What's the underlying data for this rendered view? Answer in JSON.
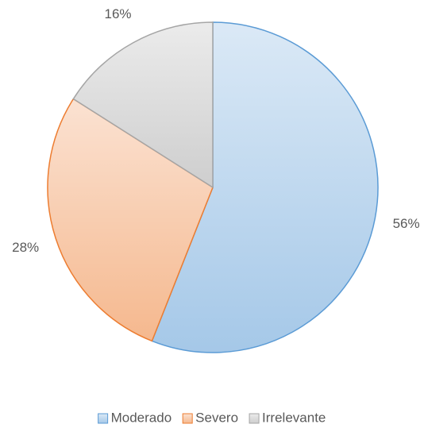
{
  "chart_data": {
    "type": "pie",
    "categories": [
      "Moderado",
      "Severo",
      "Irrelevante"
    ],
    "values": [
      56,
      28,
      16
    ],
    "value_labels": [
      "56%",
      "28%",
      "16%"
    ],
    "colors": [
      "#5b9bd5",
      "#ed7d31",
      "#a5a5a5"
    ],
    "legend": "bottom"
  }
}
